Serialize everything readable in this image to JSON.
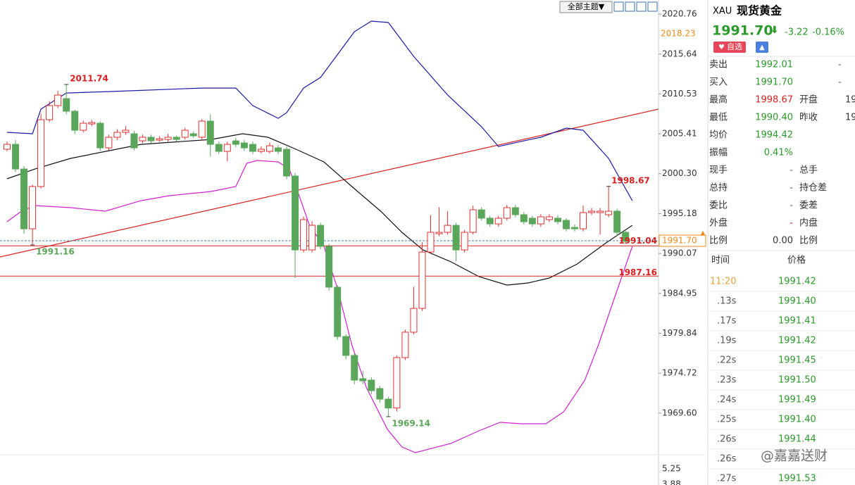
{
  "chart_data": {
    "type": "candlestick",
    "ylim": [
      1964.35,
      2022.57
    ],
    "yticks": [
      2020.76,
      2015.64,
      2010.53,
      2005.41,
      {
        "value": 2000.3,
        "label": "2000.30"
      },
      1995.18,
      1990.07,
      1984.95,
      1979.84,
      1974.72,
      {
        "value": 1969.6,
        "label": "1969.60"
      }
    ],
    "grid": false,
    "up_color": "#e03030",
    "down_color": "#5aa65a",
    "candles": {
      "open": [
        2003.43,
        2004.06,
        2000.9,
        1993.23,
        1998.65,
        2007.22,
        2009.03,
        2009.93,
        2008.31,
        2005.87,
        2006.68,
        2006.77,
        2003.61,
        2004.97,
        2005.6,
        2005.42,
        2004.51,
        2004.97,
        2004.6,
        2004.69,
        2004.97,
        2004.97,
        2005.42,
        2004.97,
        2007.04,
        2004.06,
        2003.16,
        2004.51,
        2004.24,
        2004.06,
        2003.16,
        2003.16,
        2003.61,
        2003.43,
        2000.0,
        1990.52,
        1990.52,
        1993.68,
        1990.98,
        1985.74,
        1979.42,
        1976.99,
        1974.01,
        1973.83,
        1972.75,
        1971.39,
        1970.25,
        1976.72,
        1979.97,
        1983.03,
        1990.25,
        1992.6,
        1992.78,
        1993.68,
        1990.52,
        1992.78,
        1995.67,
        1994.59,
        1993.86,
        1994.59,
        1995.94,
        1995.04,
        1994.59,
        1993.86,
        1994.41,
        1994.59,
        1994.32,
        1993.41,
        1993.23,
        1995.31,
        1995.31,
        1995.04,
        1995.49,
        1992.78
      ],
      "high": [
        2004.4,
        2004.6,
        2001.3,
        1998.9,
        2008.0,
        2009.6,
        2010.9,
        2011.74,
        2008.5,
        2007.1,
        2007.2,
        2007.0,
        2005.3,
        2006.0,
        2006.4,
        2005.8,
        2005.3,
        2005.3,
        2005.1,
        2005.4,
        2005.2,
        2006.2,
        2005.7,
        2007.3,
        2007.9,
        2004.4,
        2004.4,
        2004.9,
        2004.6,
        2004.4,
        2003.8,
        2004.3,
        2004.0,
        2003.8,
        2000.4,
        1994.8,
        1994.2,
        1994.0,
        1991.3,
        1986.0,
        1979.7,
        1977.3,
        1975.0,
        1974.2,
        1973.1,
        1971.7,
        1977.0,
        1980.3,
        1985.8,
        1991.5,
        1995.0,
        1996.0,
        1995.5,
        1994.0,
        1993.1,
        1996.2,
        1996.0,
        1994.9,
        1994.9,
        1996.3,
        1996.3,
        1995.4,
        1994.9,
        1995.1,
        1995.1,
        1995.0,
        1994.6,
        1993.8,
        1996.2,
        1995.9,
        1995.9,
        1998.67,
        1995.8,
        1993.0
      ],
      "low": [
        2003.2,
        2000.5,
        1992.6,
        1991.16,
        1998.4,
        2006.9,
        2008.7,
        2007.9,
        2005.4,
        2005.6,
        2006.4,
        2003.2,
        2003.3,
        2004.6,
        2005.3,
        2003.3,
        2004.2,
        2004.2,
        2004.4,
        2004.4,
        2004.4,
        2004.7,
        2004.9,
        2004.6,
        2002.5,
        2002.8,
        2001.9,
        2003.7,
        2003.2,
        2002.8,
        2002.9,
        2002.9,
        2002.8,
        1999.6,
        1986.92,
        1990.2,
        1990.2,
        1990.6,
        1985.3,
        1979.0,
        1976.5,
        1973.3,
        1973.3,
        1972.0,
        1970.9,
        1969.14,
        1969.8,
        1976.4,
        1979.7,
        1982.7,
        1990.0,
        1992.3,
        1992.5,
        1989.1,
        1990.2,
        1992.5,
        1994.3,
        1993.5,
        1993.5,
        1994.3,
        1994.7,
        1993.8,
        1993.5,
        1993.5,
        1994.1,
        1993.8,
        1992.9,
        1992.9,
        1992.9,
        1995.0,
        1992.5,
        1994.7,
        1992.3,
        1991.3
      ],
      "close": [
        2004.06,
        2000.9,
        1993.23,
        1998.65,
        2007.22,
        2009.03,
        2010.38,
        2008.31,
        2005.87,
        2006.77,
        2006.86,
        2003.61,
        2004.97,
        2005.6,
        2005.87,
        2003.61,
        2004.97,
        2004.51,
        2004.78,
        2004.97,
        2004.69,
        2005.87,
        2005.15,
        2007.04,
        2004.06,
        2003.16,
        2004.06,
        2004.06,
        2003.61,
        2003.16,
        2003.43,
        2003.88,
        2003.16,
        2000.0,
        1990.52,
        1994.41,
        1993.68,
        1990.98,
        1985.74,
        1979.42,
        1976.99,
        1973.83,
        1973.74,
        1972.47,
        1971.39,
        1970.25,
        1976.72,
        1979.97,
        1983.03,
        1990.25,
        1992.78,
        1992.78,
        1993.68,
        1990.52,
        1992.78,
        1995.67,
        1994.59,
        1993.86,
        1994.59,
        1995.94,
        1995.04,
        1994.14,
        1993.86,
        1994.77,
        1994.77,
        1994.14,
        1993.23,
        1993.23,
        1995.31,
        1995.49,
        1995.49,
        1995.49,
        1992.78,
        1991.61
      ]
    },
    "bands": [
      {
        "color": "#1a1aa8",
        "x": [
          0,
          3,
          4,
          7,
          12,
          23,
          27,
          29,
          32,
          33,
          35,
          37,
          41,
          43,
          45,
          48,
          52,
          56,
          58,
          61,
          63,
          66,
          68,
          71,
          73.8
        ],
        "values": [
          2005.6,
          2005.42,
          2008.58,
          2010.65,
          2010.83,
          2011.28,
          2011.28,
          2009.03,
          2007.4,
          2008.12,
          2011.28,
          2012.64,
          2018.5,
          2019.86,
          2019.68,
          2015.34,
          2010.38,
          2006.32,
          2003.79,
          2004.51,
          2004.97,
          2006.14,
          2005.87,
          2002.26,
          1996.84
        ]
      },
      {
        "color": "#111111",
        "x": [
          0,
          3.3,
          7.5,
          15.8,
          24.1,
          27.8,
          30.8,
          34.1,
          37.4,
          40.7,
          44.1,
          46.6,
          49.1,
          52.4,
          55.7,
          59,
          61.5,
          64,
          67.3,
          70.7,
          73.8
        ],
        "values": [
          1999.64,
          2000.9,
          2002.26,
          2004.06,
          2004.69,
          2005.42,
          2004.97,
          2003.43,
          2001.81,
          1998.65,
          1995.49,
          1992.78,
          1990.52,
          1988.99,
          1987.1,
          1986.01,
          1986.28,
          1986.92,
          1988.72,
          1991.43,
          1993.68
        ]
      },
      {
        "color": "#d020d0",
        "x": [
          0,
          1.7,
          3.3,
          7.5,
          11.6,
          15.8,
          19.1,
          24.1,
          27,
          28.3,
          29.5,
          32,
          33.3,
          34.1,
          35.7,
          37.4,
          39,
          40.7,
          42.4,
          44.9,
          46.6,
          48.2,
          52.4,
          55.7,
          58.2,
          60.7,
          63.6,
          65.7,
          68.2,
          69.8,
          71.5,
          73.8
        ],
        "values": [
          1994.14,
          1995.49,
          1996.21,
          1995.94,
          1995.49,
          1996.84,
          1997.47,
          1998.02,
          1998.65,
          2001.63,
          2001.99,
          2001.81,
          2000.9,
          1998.65,
          1993.68,
          1990.98,
          1985.56,
          1978.34,
          1972.92,
          1967.51,
          1965.26,
          1964.53,
          1965.71,
          1967.33,
          1968.41,
          1968.23,
          1968.23,
          1969.77,
          1973.83,
          1978.34,
          1983.76,
          1990.98
        ]
      }
    ],
    "trendline": {
      "color": "#d82020",
      "x": [
        -0.83,
        76.9
      ],
      "values": [
        1989.62,
        2008.58
      ]
    },
    "hlines": [
      {
        "value": 1991.04,
        "color": "#d82020"
      },
      {
        "value": 1987.16,
        "color": "#d82020"
      }
    ],
    "last_price": {
      "value": 1991.7,
      "label": "1991.70"
    },
    "marker": 2018.23,
    "volume_ticks": [
      5.25,
      3.88
    ]
  },
  "toolbar": {
    "theme_button": "全部主题▼"
  },
  "sidebar": {
    "symbol": "XAU",
    "name": "现货黄金",
    "price": "1991.70",
    "change": "-3.22",
    "change_pct": "-0.16%",
    "watch": "自选",
    "rows": [
      {
        "label": "卖出",
        "value": "1992.01",
        "color": "#2a9a2a",
        "extra": "-"
      },
      {
        "label": "买入",
        "value": "1991.70",
        "color": "#2a9a2a",
        "extra": "-"
      },
      {
        "label": "最高",
        "value": "1998.67",
        "color": "#d82020",
        "label2": "开盘",
        "value2": "19"
      },
      {
        "label": "最低",
        "value": "1990.40",
        "color": "#2a9a2a",
        "label2": "昨收",
        "value2": "19"
      },
      {
        "label": "均价",
        "value": "1994.42",
        "color": "#2a9a2a"
      },
      {
        "label": "振幅",
        "value": "0.41%",
        "color": "#2a9a2a"
      },
      {
        "label": "现手",
        "value": "-",
        "color": "#666666",
        "label2": "总手"
      },
      {
        "label": "总持",
        "value": "-",
        "color": "#666666",
        "label2": "持仓差"
      },
      {
        "label": "委比",
        "value": "-",
        "color": "#666666",
        "label2": "委差"
      },
      {
        "label": "外盘",
        "value": "-",
        "color": "#d82020",
        "label2": "内盘"
      },
      {
        "label": "比例",
        "value": "0.00",
        "color": "#333333",
        "label2": "比例"
      }
    ],
    "ticks_header": [
      "时间",
      "价格"
    ],
    "ticks": [
      {
        "time": "11:20",
        "price": "1991.42"
      },
      {
        "time": ".13s",
        "price": "1991.40"
      },
      {
        "time": ".17s",
        "price": "1991.41"
      },
      {
        "time": ".19s",
        "price": "1991.42"
      },
      {
        "time": ".22s",
        "price": "1991.45"
      },
      {
        "time": ".23s",
        "price": "1991.50"
      },
      {
        "time": ".24s",
        "price": "1991.49"
      },
      {
        "time": ".25s",
        "price": "1991.40"
      },
      {
        "time": ".26s",
        "price": "1991.44"
      },
      {
        "time": ".26s"
      },
      {
        "time": ".27s",
        "price": "1991.53"
      }
    ],
    "watermark": "@嘉嘉送财"
  }
}
